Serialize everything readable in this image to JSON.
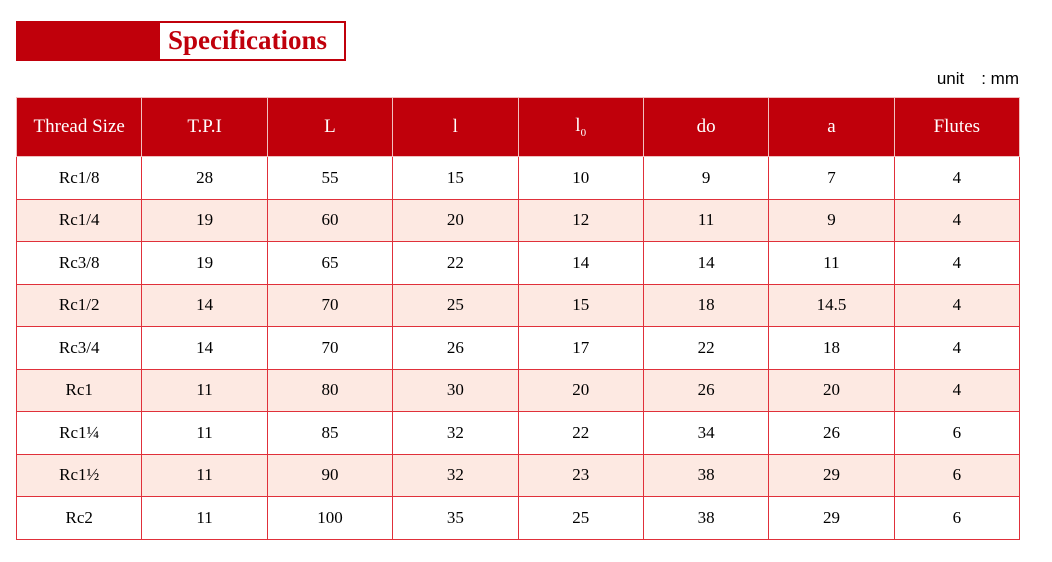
{
  "title": "Specifications",
  "unit_label": "unit　: mm",
  "colors": {
    "accent": "#c0000b",
    "alt_row": "#fde9e2"
  },
  "table": {
    "headers": [
      "Thread Size",
      "T.P.I",
      "L",
      "l",
      "l",
      "do",
      "a",
      "Flutes"
    ],
    "header_l0_sub": "0",
    "rows": [
      [
        "Rc1/8",
        "28",
        "55",
        "15",
        "10",
        "9",
        "7",
        "4"
      ],
      [
        "Rc1/4",
        "19",
        "60",
        "20",
        "12",
        "11",
        "9",
        "4"
      ],
      [
        "Rc3/8",
        "19",
        "65",
        "22",
        "14",
        "14",
        "11",
        "4"
      ],
      [
        "Rc1/2",
        "14",
        "70",
        "25",
        "15",
        "18",
        "14.5",
        "4"
      ],
      [
        "Rc3/4",
        "14",
        "70",
        "26",
        "17",
        "22",
        "18",
        "4"
      ],
      [
        "Rc1",
        "11",
        "80",
        "30",
        "20",
        "26",
        "20",
        "4"
      ],
      [
        "Rc1¼",
        "11",
        "85",
        "32",
        "22",
        "34",
        "26",
        "6"
      ],
      [
        "Rc1½",
        "11",
        "90",
        "32",
        "23",
        "38",
        "29",
        "6"
      ],
      [
        "Rc2",
        "11",
        "100",
        "35",
        "25",
        "38",
        "29",
        "6"
      ]
    ]
  }
}
